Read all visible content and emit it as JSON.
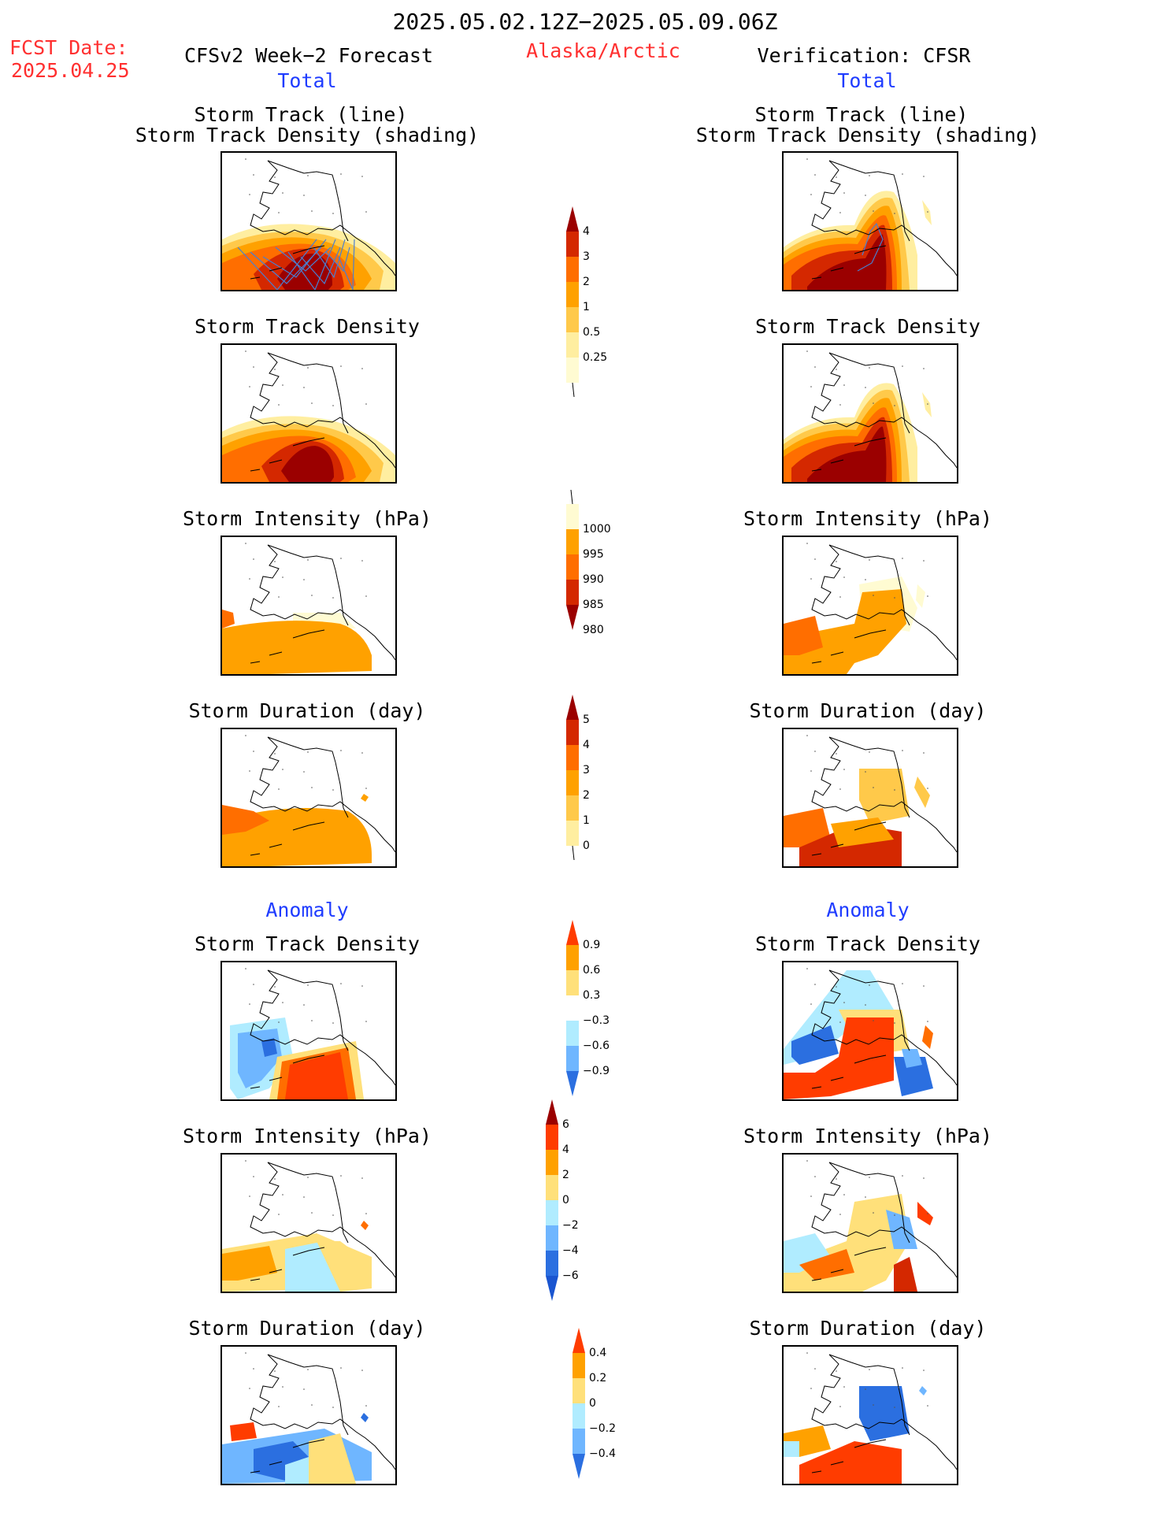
{
  "header": {
    "period": "2025.05.02.12Z−2025.05.09.06Z",
    "region": "Alaska/Arctic",
    "fcst_label": "FCST Date:",
    "fcst_date": "2025.04.25",
    "left_title": "CFSv2 Week−2 Forecast",
    "right_title": "Verification: CFSR",
    "total_left": "Total",
    "total_right": "Total",
    "anomaly_left": "Anomaly",
    "anomaly_right": "Anomaly"
  },
  "panels": {
    "track_line": "Storm Track (line)",
    "track_shading": "Storm Track Density (shading)",
    "density": "Storm Track Density",
    "intensity": "Storm Intensity (hPa)",
    "duration": "Storm Duration (day)"
  },
  "colorbars": {
    "density_total": {
      "labels": [
        "4",
        "3",
        "2",
        "1",
        "0.5",
        "0.25"
      ],
      "colors": [
        "#9b0000",
        "#d42800",
        "#ff6e00",
        "#ffa100",
        "#ffc94a",
        "#ffeea0",
        "#fffbd2"
      ]
    },
    "intensity_total": {
      "labels": [
        "1000",
        "995",
        "990",
        "985",
        "980"
      ],
      "colors": [
        "#fffbd2",
        "#ffa100",
        "#ff6e00",
        "#d42800",
        "#9b0000"
      ]
    },
    "duration_total": {
      "labels": [
        "5",
        "4",
        "3",
        "2",
        "1",
        "0"
      ],
      "colors": [
        "#9b0000",
        "#d42800",
        "#ff6e00",
        "#ffa100",
        "#ffc94a",
        "#ffeea0"
      ]
    },
    "density_anom": {
      "labels": [
        "0.9",
        "0.6",
        "0.3",
        "−0.3",
        "−0.6",
        "−0.9"
      ],
      "colors": [
        "#ff3c00",
        "#ffa100",
        "#ffe07a",
        "#ffffff",
        "#b0ecff",
        "#6fb6ff",
        "#2b6fe0"
      ]
    },
    "intensity_anom": {
      "labels": [
        "6",
        "4",
        "2",
        "0",
        "−2",
        "−4",
        "−6"
      ],
      "colors": [
        "#9b0000",
        "#ff3c00",
        "#ffa100",
        "#ffe07a",
        "#b0ecff",
        "#6fb6ff",
        "#2b6fe0",
        "#1a55d0"
      ]
    },
    "duration_anom": {
      "labels": [
        "0.4",
        "0.2",
        "0",
        "−0.2",
        "−0.4"
      ],
      "colors": [
        "#ff3c00",
        "#ffa100",
        "#ffe07a",
        "#b0ecff",
        "#6fb6ff",
        "#2b6fe0"
      ]
    }
  }
}
